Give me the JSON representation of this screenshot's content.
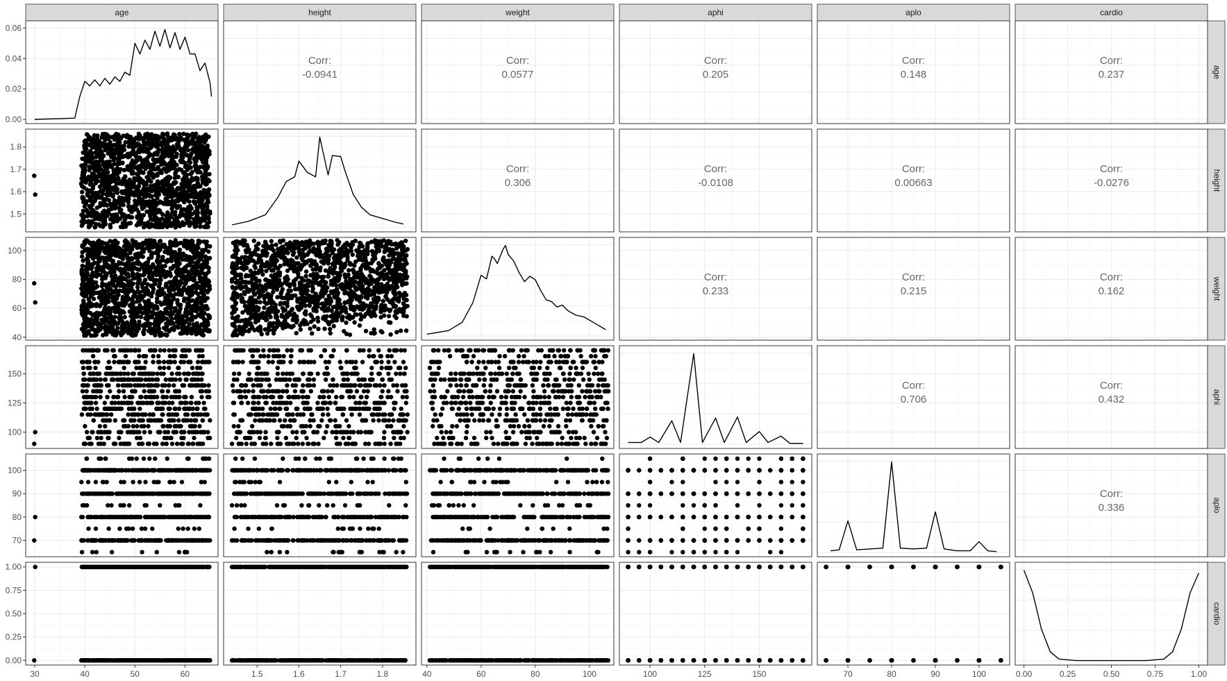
{
  "chart_data": {
    "type": "scatter-matrix",
    "variables": [
      "age",
      "height",
      "weight",
      "aphi",
      "aplo",
      "cardio"
    ],
    "axes": {
      "age": {
        "range": [
          28.2,
          66.6
        ],
        "ticks": [
          30,
          40,
          50,
          60
        ],
        "tick_labels": [
          "30",
          "40",
          "50",
          "60"
        ]
      },
      "height": {
        "range": [
          1.42,
          1.88
        ],
        "ticks": [
          1.5,
          1.6,
          1.7,
          1.8
        ],
        "tick_labels": [
          "1.5",
          "1.6",
          "1.7",
          "1.8"
        ]
      },
      "weight": {
        "range": [
          38,
          109
        ],
        "ticks": [
          40,
          60,
          80,
          100
        ],
        "tick_labels": [
          "40",
          "60",
          "80",
          "100"
        ]
      },
      "aphi": {
        "range": [
          86,
          174
        ],
        "ticks": [
          100,
          125,
          150
        ],
        "tick_labels": [
          "100",
          "125",
          "150"
        ]
      },
      "aplo": {
        "range": [
          63,
          107
        ],
        "ticks": [
          70,
          80,
          90,
          100
        ],
        "tick_labels": [
          "70",
          "80",
          "90",
          "100"
        ]
      },
      "cardio": {
        "range": [
          -0.05,
          1.05
        ],
        "ticks": [
          0,
          0.25,
          0.5,
          0.75,
          1.0
        ],
        "tick_labels": [
          "0.00",
          "0.25",
          "0.50",
          "0.75",
          "1.00"
        ]
      }
    },
    "density_ylim": [
      0,
      0.062
    ],
    "density_ticks": [
      0,
      0.02,
      0.04,
      0.06
    ],
    "density_tick_labels": [
      "0.00",
      "0.02",
      "0.04",
      "0.06"
    ],
    "densities": {
      "age": {
        "x": [
          30,
          38,
          39,
          40,
          41,
          42,
          43,
          44,
          45,
          46,
          47,
          48,
          49,
          50,
          51,
          52,
          53,
          54,
          55,
          56,
          57,
          58,
          59,
          60,
          61,
          62,
          63,
          64,
          65,
          65.3
        ],
        "y": [
          0,
          0.0008,
          0.015,
          0.025,
          0.022,
          0.026,
          0.022,
          0.027,
          0.023,
          0.028,
          0.025,
          0.031,
          0.029,
          0.05,
          0.043,
          0.052,
          0.046,
          0.058,
          0.048,
          0.059,
          0.047,
          0.057,
          0.046,
          0.054,
          0.043,
          0.043,
          0.032,
          0.037,
          0.024,
          0.015
        ]
      },
      "height": {
        "x": [
          1.44,
          1.48,
          1.52,
          1.55,
          1.57,
          1.59,
          1.6,
          1.62,
          1.64,
          1.65,
          1.67,
          1.68,
          1.7,
          1.71,
          1.73,
          1.75,
          1.77,
          1.8,
          1.83,
          1.85
        ],
        "y": [
          0.03,
          0.07,
          0.14,
          0.33,
          0.5,
          0.55,
          0.72,
          0.6,
          0.55,
          0.98,
          0.57,
          0.78,
          0.77,
          0.62,
          0.36,
          0.22,
          0.14,
          0.1,
          0.06,
          0.04
        ]
      },
      "weight": {
        "x": [
          40,
          48,
          53,
          57,
          60,
          62,
          64,
          65,
          66,
          68,
          69,
          70,
          72,
          74,
          76,
          78,
          80,
          82,
          84,
          86,
          88,
          90,
          92,
          95,
          98,
          102,
          106
        ],
        "y": [
          0.02,
          0.06,
          0.15,
          0.37,
          0.67,
          0.63,
          0.88,
          0.85,
          0.8,
          0.95,
          1.0,
          0.9,
          0.83,
          0.7,
          0.6,
          0.66,
          0.62,
          0.5,
          0.4,
          0.38,
          0.32,
          0.34,
          0.28,
          0.23,
          0.21,
          0.14,
          0.07
        ]
      },
      "aphi": {
        "x": [
          90,
          96,
          100,
          104,
          110,
          114,
          120,
          124,
          130,
          134,
          140,
          144,
          150,
          154,
          160,
          164,
          170
        ],
        "y": [
          0.02,
          0.02,
          0.08,
          0.02,
          0.26,
          0.02,
          1.0,
          0.02,
          0.29,
          0.02,
          0.3,
          0.02,
          0.14,
          0.02,
          0.09,
          0.01,
          0.01
        ]
      },
      "aplo": {
        "x": [
          66,
          68,
          70,
          72,
          75,
          78,
          80,
          82,
          85,
          88,
          90,
          92,
          95,
          98,
          100,
          102,
          104
        ],
        "y": [
          0.02,
          0.03,
          0.35,
          0.03,
          0.04,
          0.05,
          1.0,
          0.05,
          0.04,
          0.05,
          0.45,
          0.04,
          0.02,
          0.02,
          0.12,
          0.02,
          0.01
        ]
      },
      "cardio": {
        "x": [
          0,
          0.05,
          0.1,
          0.15,
          0.2,
          0.3,
          0.5,
          0.7,
          0.8,
          0.85,
          0.9,
          0.95,
          1.0
        ],
        "y": [
          1.0,
          0.75,
          0.35,
          0.1,
          0.02,
          0.003,
          0.003,
          0.003,
          0.02,
          0.1,
          0.35,
          0.75,
          0.97
        ]
      }
    },
    "correlations": {
      "age": {
        "height": "-0.0941",
        "weight": "0.0577",
        "aphi": "0.205",
        "aplo": "0.148",
        "cardio": "0.237"
      },
      "height": {
        "weight": "0.306",
        "aphi": "-0.0108",
        "aplo": "0.00663",
        "cardio": "-0.0276"
      },
      "weight": {
        "aphi": "0.233",
        "aplo": "0.215",
        "cardio": "0.162"
      },
      "aphi": {
        "aplo": "0.706",
        "cardio": "0.432"
      },
      "aplo": {
        "cardio": "0.336"
      }
    },
    "corr_label": "Corr:",
    "point_bands": {
      "age": {
        "continuous": [
          39.3,
          65
        ],
        "outliers": [
          29.9,
          30.1
        ]
      },
      "height": {
        "continuous": [
          1.44,
          1.86
        ]
      },
      "weight": {
        "continuous": [
          41,
          107
        ]
      },
      "aphi": {
        "discrete": [
          90,
          100,
          110,
          115,
          120,
          125,
          130,
          135,
          140,
          145,
          150,
          160,
          170
        ],
        "jitter": [
          95,
          105,
          155,
          165
        ]
      },
      "aplo": {
        "discrete": [
          70,
          80,
          90,
          100
        ],
        "jitter": [
          65,
          75,
          85,
          95,
          105
        ]
      },
      "cardio": {
        "discrete": [
          0,
          1
        ]
      }
    },
    "grid": true,
    "legend": "none"
  }
}
